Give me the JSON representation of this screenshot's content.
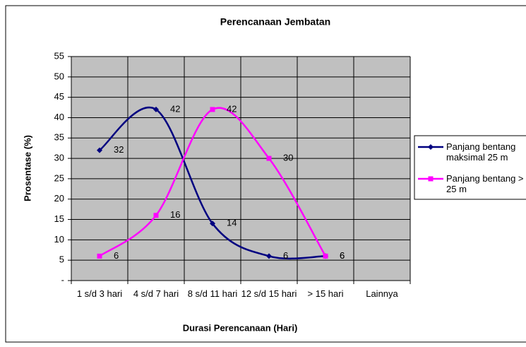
{
  "chart_data": {
    "type": "line",
    "title": "Perencanaan Jembatan",
    "x_label": "Durasi Perencanaan (Hari)",
    "y_label": "Prosentase (%)",
    "categories": [
      "1 s/d 3 hari",
      "4 s/d 7 hari",
      "8 s/d 11 hari",
      "12 s/d 15 hari",
      "> 15 hari",
      "Lainnya"
    ],
    "series": [
      {
        "name": "Panjang bentang maksimal 25 m",
        "color": "#000080",
        "marker": "diamond",
        "values": [
          32,
          42,
          14,
          6,
          6,
          null
        ]
      },
      {
        "name": "Panjang bentang > 25 m",
        "color": "#ff00ff",
        "marker": "square",
        "values": [
          6,
          16,
          42,
          30,
          6,
          null
        ]
      }
    ],
    "ylim": [
      0,
      55
    ],
    "yticks": [
      {
        "value": 0,
        "label": "-"
      },
      5,
      10,
      15,
      20,
      25,
      30,
      35,
      40,
      45,
      50,
      55
    ],
    "grid": true,
    "smooth": true,
    "legend": "right",
    "plot_background": "#c0c0c0"
  }
}
